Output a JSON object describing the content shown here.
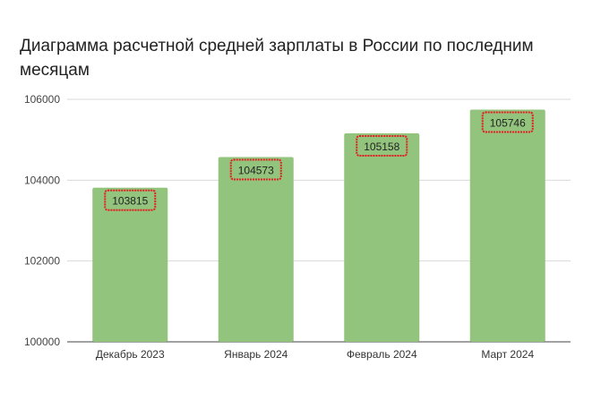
{
  "chart_data": {
    "type": "bar",
    "title": "Диаграмма расчетной средней зарплаты в России по последним месяцам",
    "categories": [
      "Декабрь 2023",
      "Январь 2024",
      "Февраль 2024",
      "Март 2024"
    ],
    "values": [
      103815,
      104573,
      105158,
      105746
    ],
    "data_labels": [
      "103815",
      "104573",
      "105158",
      "105746"
    ],
    "yticks": [
      "100000",
      "102000",
      "104000",
      "106000"
    ],
    "ylim": [
      100000,
      106000
    ],
    "xlabel": "",
    "ylabel": "",
    "grid": true,
    "bar_color": "#93c47d",
    "highlight_color": "#e02020"
  }
}
